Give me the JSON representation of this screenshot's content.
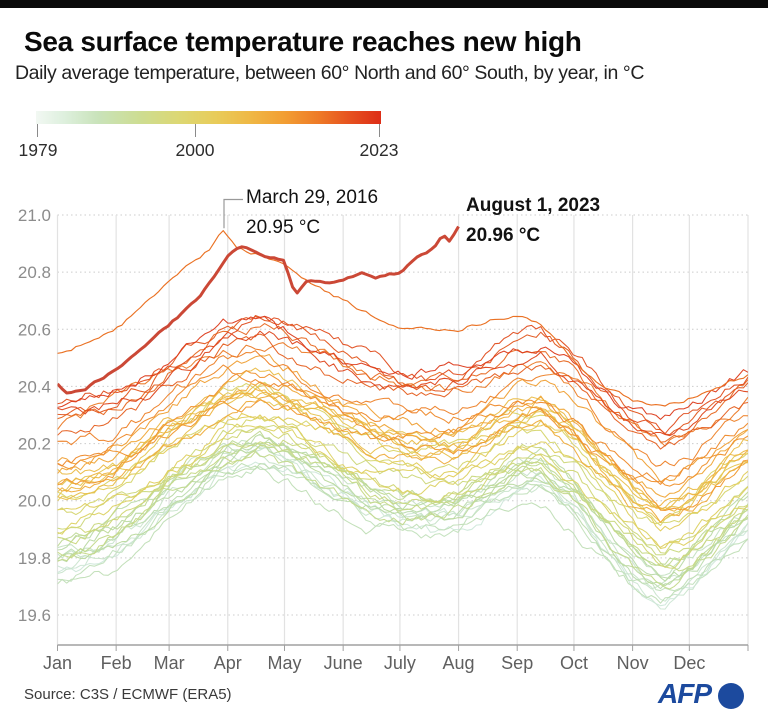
{
  "header": {
    "title": "Sea surface temperature reaches new high",
    "subtitle": "Daily average temperature, between 60° North and 60° South, by year, in °C"
  },
  "legend": {
    "labels": [
      "1979",
      "2000",
      "2023"
    ],
    "gradient_stops": [
      {
        "t": 0.0,
        "c": "#f2f8f3"
      },
      {
        "t": 0.08,
        "c": "#def0de"
      },
      {
        "t": 0.18,
        "c": "#c9e3ba"
      },
      {
        "t": 0.3,
        "c": "#cddd92"
      },
      {
        "t": 0.42,
        "c": "#ddd772"
      },
      {
        "t": 0.52,
        "c": "#e8cc5a"
      },
      {
        "t": 0.62,
        "c": "#efb845"
      },
      {
        "t": 0.72,
        "c": "#f29e33"
      },
      {
        "t": 0.82,
        "c": "#ee7a27"
      },
      {
        "t": 0.91,
        "c": "#e6511f"
      },
      {
        "t": 1.0,
        "c": "#dd2d17"
      }
    ]
  },
  "annotations": {
    "record_2016": {
      "line1": "March 29, 2016",
      "line2": "20.95 °C",
      "point": {
        "t": 0.2384,
        "value": 20.95
      }
    },
    "record_2023": {
      "line1": "August 1, 2023",
      "line2": "20.96 °C",
      "point": {
        "t": 0.5808,
        "value": 20.96
      }
    }
  },
  "chart_data": {
    "type": "line",
    "title": "Daily average sea surface temperature, 60°N–60°S, one line per year 1979–2023, in °C",
    "xlabel": "",
    "ylabel": "°C",
    "ylim": [
      19.5,
      21.0
    ],
    "y_ticks": [
      21.0,
      20.8,
      20.6,
      20.4,
      20.2,
      20.0,
      19.8,
      19.6
    ],
    "x_tick_labels": [
      "Jan",
      "Feb",
      "Mar",
      "Apr",
      "May",
      "June",
      "July",
      "Aug",
      "Sep",
      "Oct",
      "Nov",
      "Dec"
    ],
    "month_day_bounds": [
      0,
      31,
      59,
      90,
      120,
      151,
      181,
      212,
      243,
      273,
      304,
      334,
      365
    ],
    "grid": true,
    "legend_position": "top-left gradient ramp by year",
    "color_ramp": [
      {
        "t": 0.0,
        "c": "#cfe8da"
      },
      {
        "t": 0.1,
        "c": "#c4e1c0"
      },
      {
        "t": 0.2,
        "c": "#b8d9a4"
      },
      {
        "t": 0.32,
        "c": "#c6d985"
      },
      {
        "t": 0.44,
        "c": "#dad466"
      },
      {
        "t": 0.54,
        "c": "#e6c652"
      },
      {
        "t": 0.64,
        "c": "#eeb23f"
      },
      {
        "t": 0.74,
        "c": "#f0952e"
      },
      {
        "t": 0.84,
        "c": "#ea7123"
      },
      {
        "t": 0.93,
        "c": "#e04e1d"
      },
      {
        "t": 1.0,
        "c": "#da3118"
      }
    ],
    "year_range": [
      1979,
      2023
    ],
    "years_estimated_annual_mean": [
      {
        "year": 1979,
        "mean": 19.9
      },
      {
        "year": 1980,
        "mean": 19.92
      },
      {
        "year": 1981,
        "mean": 19.91
      },
      {
        "year": 1982,
        "mean": 19.93
      },
      {
        "year": 1983,
        "mean": 19.97
      },
      {
        "year": 1984,
        "mean": 19.89
      },
      {
        "year": 1985,
        "mean": 19.87
      },
      {
        "year": 1986,
        "mean": 19.92
      },
      {
        "year": 1987,
        "mean": 19.99
      },
      {
        "year": 1988,
        "mean": 19.96
      },
      {
        "year": 1989,
        "mean": 19.93
      },
      {
        "year": 1990,
        "mean": 19.99
      },
      {
        "year": 1991,
        "mean": 20.0
      },
      {
        "year": 1992,
        "mean": 19.94
      },
      {
        "year": 1993,
        "mean": 19.97
      },
      {
        "year": 1994,
        "mean": 20.01
      },
      {
        "year": 1995,
        "mean": 20.05
      },
      {
        "year": 1996,
        "mean": 20.02
      },
      {
        "year": 1997,
        "mean": 20.1
      },
      {
        "year": 1998,
        "mean": 20.16
      },
      {
        "year": 1999,
        "mean": 20.04
      },
      {
        "year": 2000,
        "mean": 20.06
      },
      {
        "year": 2001,
        "mean": 20.12
      },
      {
        "year": 2002,
        "mean": 20.17
      },
      {
        "year": 2003,
        "mean": 20.18
      },
      {
        "year": 2004,
        "mean": 20.16
      },
      {
        "year": 2005,
        "mean": 20.21
      },
      {
        "year": 2006,
        "mean": 20.19
      },
      {
        "year": 2007,
        "mean": 20.18
      },
      {
        "year": 2008,
        "mean": 20.14
      },
      {
        "year": 2009,
        "mean": 20.22
      },
      {
        "year": 2010,
        "mean": 20.27
      },
      {
        "year": 2011,
        "mean": 20.17
      },
      {
        "year": 2012,
        "mean": 20.22
      },
      {
        "year": 2013,
        "mean": 20.26
      },
      {
        "year": 2014,
        "mean": 20.31
      },
      {
        "year": 2015,
        "mean": 20.38
      },
      {
        "year": 2017,
        "mean": 20.41
      },
      {
        "year": 2018,
        "mean": 20.36
      },
      {
        "year": 2019,
        "mean": 20.43
      },
      {
        "year": 2020,
        "mean": 20.45
      },
      {
        "year": 2021,
        "mean": 20.39
      },
      {
        "year": 2022,
        "mean": 20.44
      }
    ],
    "seasonal_shape_delta": [
      [
        0.0,
        -0.13
      ],
      [
        0.04,
        -0.11
      ],
      [
        0.085,
        -0.07
      ],
      [
        0.125,
        -0.01
      ],
      [
        0.16,
        0.06
      ],
      [
        0.2,
        0.12
      ],
      [
        0.245,
        0.19
      ],
      [
        0.29,
        0.22
      ],
      [
        0.33,
        0.19
      ],
      [
        0.37,
        0.14
      ],
      [
        0.415,
        0.09
      ],
      [
        0.455,
        0.05
      ],
      [
        0.5,
        0.02
      ],
      [
        0.54,
        0.01
      ],
      [
        0.58,
        0.02
      ],
      [
        0.625,
        0.07
      ],
      [
        0.665,
        0.12
      ],
      [
        0.7,
        0.14
      ],
      [
        0.75,
        0.05
      ],
      [
        0.79,
        -0.05
      ],
      [
        0.835,
        -0.15
      ],
      [
        0.875,
        -0.21
      ],
      [
        0.92,
        -0.16
      ],
      [
        0.96,
        -0.08
      ],
      [
        1.0,
        -0.01
      ]
    ],
    "series_2016_anchors": [
      [
        0.0,
        20.52
      ],
      [
        0.04,
        20.55
      ],
      [
        0.085,
        20.6
      ],
      [
        0.125,
        20.68
      ],
      [
        0.16,
        20.76
      ],
      [
        0.2,
        20.84
      ],
      [
        0.22,
        20.88
      ],
      [
        0.2384,
        20.95
      ],
      [
        0.26,
        20.88
      ],
      [
        0.29,
        20.86
      ],
      [
        0.33,
        20.82
      ],
      [
        0.37,
        20.75
      ],
      [
        0.415,
        20.7
      ],
      [
        0.455,
        20.65
      ],
      [
        0.495,
        20.61
      ],
      [
        0.54,
        20.6
      ],
      [
        0.58,
        20.6
      ],
      [
        0.625,
        20.63
      ],
      [
        0.665,
        20.64
      ],
      [
        0.7,
        20.62
      ],
      [
        0.75,
        20.48
      ],
      [
        0.79,
        20.4
      ],
      [
        0.835,
        20.35
      ],
      [
        0.875,
        20.33
      ],
      [
        0.92,
        20.36
      ],
      [
        0.96,
        20.4
      ],
      [
        1.0,
        20.44
      ]
    ],
    "series_2023_anchors": [
      [
        0.0,
        20.41
      ],
      [
        0.015,
        20.37
      ],
      [
        0.04,
        20.39
      ],
      [
        0.085,
        20.46
      ],
      [
        0.12,
        20.53
      ],
      [
        0.16,
        20.61
      ],
      [
        0.2,
        20.7
      ],
      [
        0.23,
        20.79
      ],
      [
        0.247,
        20.85
      ],
      [
        0.265,
        20.89
      ],
      [
        0.29,
        20.87
      ],
      [
        0.31,
        20.85
      ],
      [
        0.328,
        20.84
      ],
      [
        0.345,
        20.72
      ],
      [
        0.36,
        20.77
      ],
      [
        0.39,
        20.76
      ],
      [
        0.413,
        20.77
      ],
      [
        0.44,
        20.8
      ],
      [
        0.46,
        20.78
      ],
      [
        0.495,
        20.8
      ],
      [
        0.52,
        20.85
      ],
      [
        0.545,
        20.88
      ],
      [
        0.558,
        20.93
      ],
      [
        0.568,
        20.91
      ],
      [
        0.5808,
        20.96
      ]
    ],
    "highlight_year": 2023,
    "highlight_color": "#cb4836",
    "grid_colors": {
      "h_dotted": "#cccccc",
      "v_solid": "#e2e2e2",
      "axis": "#a0a0a0",
      "tick_label": "#8c8c8c",
      "month_label": "#5f5f5f"
    }
  },
  "footer": {
    "source": "Source: C3S / ECMWF (ERA5)",
    "brand": "AFP",
    "brand_color": "#1c4a9e"
  }
}
